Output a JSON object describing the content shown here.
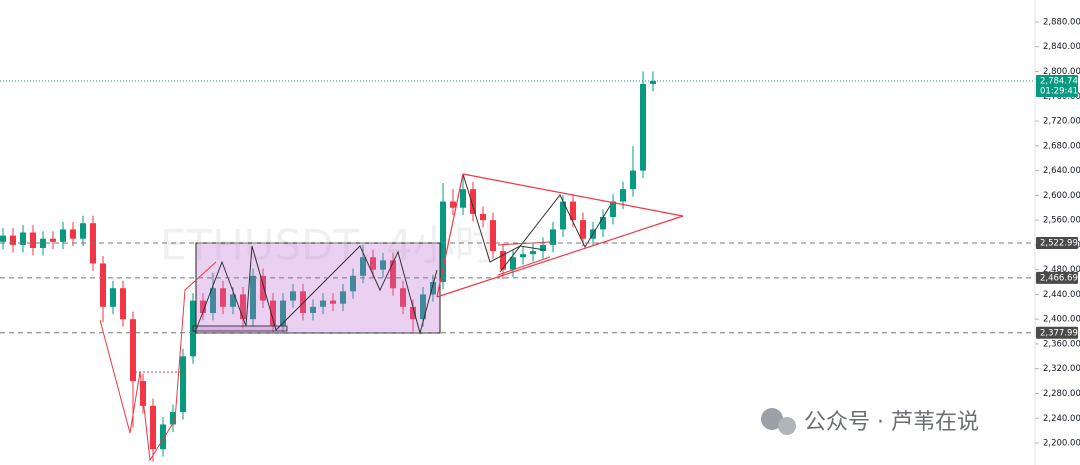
{
  "chart_data": {
    "type": "candlestick",
    "watermark": "ETHUSDT, 4小时",
    "overlay": "公众号 · 芦苇在说",
    "up_color": "#089981",
    "down_color": "#f23645",
    "ylim": [
      2164.5,
      2915.5
    ],
    "yticks": [
      {
        "value": 2200,
        "label": "2,200.00"
      },
      {
        "value": 2240,
        "label": "2,240.00"
      },
      {
        "value": 2280,
        "label": "2,280.00"
      },
      {
        "value": 2320,
        "label": "2,320.00"
      },
      {
        "value": 2360,
        "label": "2,360.00"
      },
      {
        "value": 2400,
        "label": "2,400.00"
      },
      {
        "value": 2440,
        "label": "2,440.00"
      },
      {
        "value": 2480,
        "label": "2,480.00"
      },
      {
        "value": 2520,
        "label": "2,520.00"
      },
      {
        "value": 2560,
        "label": "2,560.00"
      },
      {
        "value": 2600,
        "label": "2,600.00"
      },
      {
        "value": 2640,
        "label": "2,640.00"
      },
      {
        "value": 2680,
        "label": "2,680.00"
      },
      {
        "value": 2720,
        "label": "2,720.00"
      },
      {
        "value": 2760,
        "label": "2,760.00"
      },
      {
        "value": 2800,
        "label": "2,800.00"
      },
      {
        "value": 2840,
        "label": "2,840.00"
      },
      {
        "value": 2880,
        "label": "2,880.00"
      }
    ],
    "price_levels": [
      {
        "value": 2522.99,
        "label": "2,522.99"
      },
      {
        "value": 2466.69,
        "label": "2,466.69"
      },
      {
        "value": 2377.99,
        "label": "2,377.99"
      }
    ],
    "last_price": {
      "value": 2784.74,
      "label": "2,784.74"
    },
    "countdown": "01:29:41",
    "open": [
      2525,
      2535,
      2520,
      2540,
      2515,
      2530,
      2525,
      2545,
      2530,
      2555,
      2490,
      2420,
      2450,
      2400,
      2300,
      2260,
      2190,
      2230,
      2250,
      2340,
      2430,
      2410,
      2450,
      2420,
      2440,
      2400,
      2470,
      2430,
      2390,
      2430,
      2445,
      2410,
      2420,
      2430,
      2425,
      2445,
      2470,
      2500,
      2480,
      2495,
      2450,
      2420,
      2400,
      2440,
      2460,
      2590,
      2580,
      2610,
      2570,
      2560,
      2510,
      2480,
      2500,
      2505,
      2510,
      2520,
      2545,
      2590,
      2560,
      2530,
      2545,
      2565,
      2590,
      2610,
      2640,
      2780
    ],
    "high": [
      2547,
      2547,
      2552,
      2552,
      2542,
      2542,
      2557,
      2557,
      2567,
      2567,
      2502,
      2462,
      2462,
      2412,
      2312,
      2272,
      2242,
      2262,
      2352,
      2442,
      2442,
      2475,
      2462,
      2452,
      2452,
      2482,
      2482,
      2442,
      2442,
      2457,
      2457,
      2432,
      2442,
      2442,
      2457,
      2482,
      2520,
      2512,
      2507,
      2507,
      2462,
      2432,
      2452,
      2472,
      2620,
      2610,
      2635,
      2622,
      2582,
      2572,
      2522,
      2512,
      2517,
      2522,
      2532,
      2557,
      2600,
      2602,
      2572,
      2557,
      2577,
      2602,
      2622,
      2680,
      2800,
      2800
    ],
    "low": [
      2513,
      2508,
      2508,
      2503,
      2503,
      2513,
      2513,
      2518,
      2518,
      2478,
      2395,
      2408,
      2388,
      2225,
      2248,
      2170,
      2178,
      2218,
      2238,
      2328,
      2398,
      2398,
      2408,
      2408,
      2385,
      2388,
      2418,
      2378,
      2378,
      2418,
      2398,
      2398,
      2408,
      2413,
      2413,
      2433,
      2458,
      2468,
      2468,
      2438,
      2408,
      2380,
      2388,
      2428,
      2448,
      2568,
      2568,
      2558,
      2548,
      2498,
      2465,
      2468,
      2488,
      2493,
      2498,
      2508,
      2533,
      2548,
      2518,
      2518,
      2533,
      2553,
      2578,
      2598,
      2628,
      2768
    ],
    "close": [
      2535,
      2520,
      2540,
      2515,
      2530,
      2525,
      2545,
      2530,
      2555,
      2490,
      2420,
      2450,
      2400,
      2300,
      2260,
      2190,
      2230,
      2250,
      2340,
      2430,
      2410,
      2450,
      2420,
      2440,
      2400,
      2470,
      2430,
      2390,
      2430,
      2445,
      2410,
      2420,
      2430,
      2425,
      2445,
      2470,
      2500,
      2480,
      2495,
      2450,
      2420,
      2400,
      2440,
      2460,
      2590,
      2580,
      2610,
      2570,
      2560,
      2510,
      2480,
      2500,
      2505,
      2510,
      2520,
      2545,
      2590,
      2560,
      2530,
      2545,
      2565,
      2590,
      2610,
      2640,
      2780,
      2784.74
    ]
  }
}
